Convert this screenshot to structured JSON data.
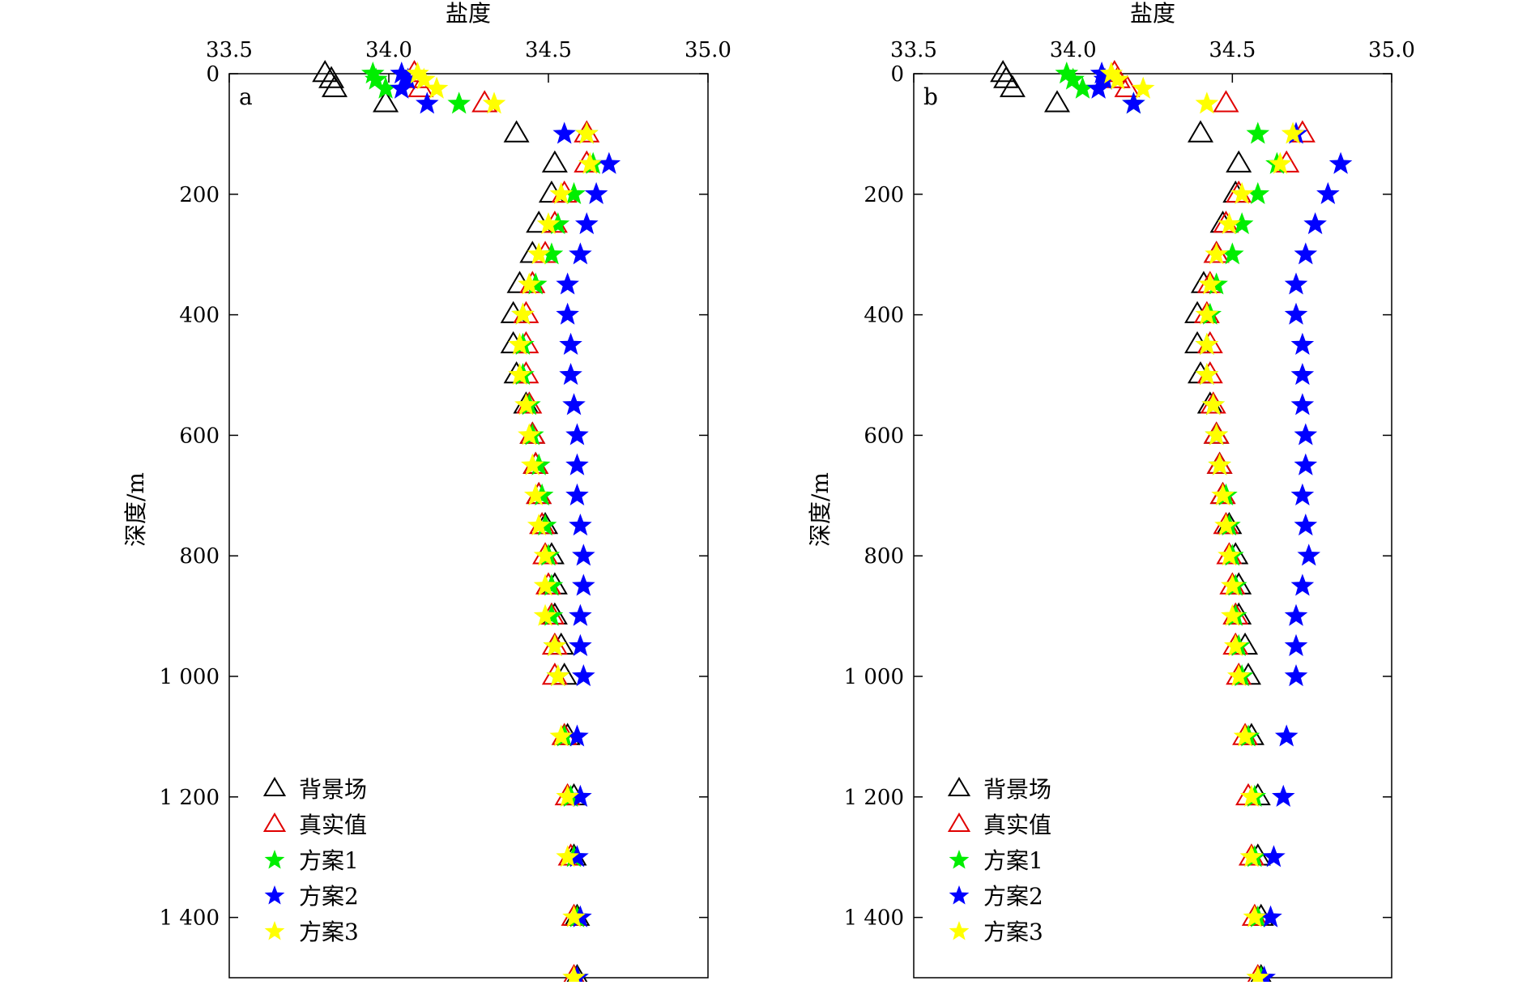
{
  "chart_data": [
    {
      "type": "scatter",
      "panel_label": "a",
      "xlabel": "盐度",
      "ylabel": "深度/m",
      "xlim": [
        33.5,
        35.0
      ],
      "ylim": [
        0,
        1500
      ],
      "y_inverted": true,
      "x_axis_position": "top",
      "xticks": [
        33.5,
        34.0,
        34.5,
        35.0
      ],
      "xtick_labels": [
        "33.5",
        "34.0",
        "34.5",
        "35.0"
      ],
      "yticks": [
        0,
        200,
        400,
        600,
        800,
        1000,
        1200,
        1400
      ],
      "ytick_labels": [
        "0",
        "200",
        "400",
        "600",
        "800",
        "1 000",
        "1 200",
        "1 400"
      ],
      "legend_position": "bottom-left",
      "series": [
        {
          "name": "背景场",
          "marker": "triangle",
          "color": "#000000",
          "y": [
            0,
            10,
            25,
            50,
            100,
            150,
            200,
            250,
            300,
            350,
            400,
            450,
            500,
            550,
            600,
            650,
            700,
            750,
            800,
            850,
            900,
            950,
            1000,
            1100,
            1200,
            1300,
            1400,
            1500
          ],
          "x": [
            33.8,
            33.82,
            33.83,
            33.99,
            34.4,
            34.52,
            34.51,
            34.47,
            34.45,
            34.41,
            34.39,
            34.39,
            34.4,
            34.43,
            34.45,
            34.46,
            34.47,
            34.49,
            34.51,
            34.52,
            34.52,
            34.54,
            34.55,
            34.56,
            34.58,
            34.58,
            34.59,
            34.59
          ]
        },
        {
          "name": "真实值",
          "marker": "triangle",
          "color": "#e00000",
          "y": [
            0,
            10,
            25,
            50,
            100,
            150,
            200,
            250,
            300,
            350,
            400,
            450,
            500,
            550,
            600,
            650,
            700,
            750,
            800,
            850,
            900,
            950,
            1000,
            1100,
            1200,
            1300,
            1400,
            1500
          ],
          "x": [
            34.08,
            34.09,
            34.1,
            34.3,
            34.62,
            34.62,
            34.55,
            34.52,
            34.49,
            34.45,
            34.43,
            34.43,
            34.43,
            34.44,
            34.45,
            34.46,
            34.47,
            34.48,
            34.49,
            34.5,
            34.51,
            34.52,
            34.52,
            34.55,
            34.56,
            34.57,
            34.58,
            34.58
          ]
        },
        {
          "name": "方案1",
          "marker": "star",
          "color": "#00ee00",
          "y": [
            0,
            10,
            25,
            50,
            100,
            150,
            200,
            250,
            300,
            350,
            400,
            450,
            500,
            550,
            600,
            650,
            700,
            750,
            800,
            850,
            900,
            950,
            1000,
            1100,
            1200,
            1300,
            1400,
            1500
          ],
          "x": [
            33.95,
            33.96,
            33.99,
            34.22,
            34.62,
            34.64,
            34.58,
            34.53,
            34.51,
            34.46,
            34.42,
            34.42,
            34.42,
            34.44,
            34.45,
            34.47,
            34.48,
            34.49,
            34.5,
            34.51,
            34.51,
            34.52,
            34.53,
            34.55,
            34.57,
            34.58,
            34.59,
            34.59
          ]
        },
        {
          "name": "方案2",
          "marker": "star",
          "color": "#0000ff",
          "y": [
            0,
            10,
            25,
            50,
            100,
            150,
            200,
            250,
            300,
            350,
            400,
            450,
            500,
            550,
            600,
            650,
            700,
            750,
            800,
            850,
            900,
            950,
            1000,
            1100,
            1200,
            1300,
            1400,
            1500
          ],
          "x": [
            34.04,
            34.06,
            34.04,
            34.12,
            34.55,
            34.69,
            34.65,
            34.62,
            34.6,
            34.56,
            34.56,
            34.57,
            34.57,
            34.58,
            34.59,
            34.59,
            34.59,
            34.6,
            34.61,
            34.61,
            34.6,
            34.6,
            34.61,
            34.59,
            34.6,
            34.59,
            34.6,
            34.59
          ]
        },
        {
          "name": "方案3",
          "marker": "star",
          "color": "#ffff00",
          "y": [
            0,
            10,
            25,
            50,
            100,
            150,
            200,
            250,
            300,
            350,
            400,
            450,
            500,
            550,
            600,
            650,
            700,
            750,
            800,
            850,
            900,
            950,
            1000,
            1100,
            1200,
            1300,
            1400,
            1500
          ],
          "x": [
            34.09,
            34.11,
            34.15,
            34.33,
            34.62,
            34.63,
            34.54,
            34.5,
            34.47,
            34.44,
            34.42,
            34.41,
            34.41,
            34.43,
            34.44,
            34.45,
            34.46,
            34.47,
            34.49,
            34.49,
            34.49,
            34.52,
            34.53,
            34.54,
            34.56,
            34.56,
            34.58,
            34.58
          ]
        }
      ]
    },
    {
      "type": "scatter",
      "panel_label": "b",
      "xlabel": "盐度",
      "ylabel": "深度/m",
      "xlim": [
        33.5,
        35.0
      ],
      "ylim": [
        0,
        1500
      ],
      "y_inverted": true,
      "x_axis_position": "top",
      "xticks": [
        33.5,
        34.0,
        34.5,
        35.0
      ],
      "xtick_labels": [
        "33.5",
        "34.0",
        "34.5",
        "35.0"
      ],
      "yticks": [
        0,
        200,
        400,
        600,
        800,
        1000,
        1200,
        1400
      ],
      "ytick_labels": [
        "0",
        "200",
        "400",
        "600",
        "800",
        "1 000",
        "1 200",
        "1 400"
      ],
      "legend_position": "bottom-left",
      "series": [
        {
          "name": "背景场",
          "marker": "triangle",
          "color": "#000000",
          "y": [
            0,
            10,
            25,
            50,
            100,
            150,
            200,
            250,
            300,
            350,
            400,
            450,
            500,
            550,
            600,
            650,
            700,
            750,
            800,
            850,
            900,
            950,
            1000,
            1100,
            1200,
            1300,
            1400,
            1500
          ],
          "x": [
            33.78,
            33.79,
            33.81,
            33.95,
            34.4,
            34.52,
            34.51,
            34.47,
            34.45,
            34.41,
            34.39,
            34.39,
            34.4,
            34.43,
            34.45,
            34.46,
            34.47,
            34.49,
            34.51,
            34.52,
            34.52,
            34.54,
            34.55,
            34.56,
            34.58,
            34.58,
            34.59,
            34.59
          ]
        },
        {
          "name": "真实值",
          "marker": "triangle",
          "color": "#e00000",
          "y": [
            0,
            10,
            25,
            50,
            100,
            150,
            200,
            250,
            300,
            350,
            400,
            450,
            500,
            550,
            600,
            650,
            700,
            750,
            800,
            850,
            900,
            950,
            1000,
            1100,
            1200,
            1300,
            1400,
            1500
          ],
          "x": [
            34.13,
            34.14,
            34.17,
            34.48,
            34.72,
            34.67,
            34.52,
            34.48,
            34.45,
            34.43,
            34.42,
            34.43,
            34.43,
            34.44,
            34.45,
            34.46,
            34.47,
            34.48,
            34.49,
            34.5,
            34.51,
            34.51,
            34.52,
            34.54,
            34.55,
            34.56,
            34.57,
            34.58
          ]
        },
        {
          "name": "方案1",
          "marker": "star",
          "color": "#00ee00",
          "y": [
            0,
            10,
            25,
            50,
            100,
            150,
            200,
            250,
            300,
            350,
            400,
            450,
            500,
            550,
            600,
            650,
            700,
            750,
            800,
            850,
            900,
            950,
            1000,
            1100,
            1200,
            1300,
            1400,
            1500
          ],
          "x": [
            33.98,
            34.0,
            34.03,
            34.19,
            34.58,
            34.64,
            34.58,
            34.53,
            34.5,
            34.45,
            34.43,
            34.42,
            34.42,
            34.44,
            34.45,
            34.46,
            34.48,
            34.49,
            34.5,
            34.51,
            34.51,
            34.52,
            34.53,
            34.55,
            34.57,
            34.57,
            34.58,
            34.59
          ]
        },
        {
          "name": "方案2",
          "marker": "star",
          "color": "#0000ff",
          "y": [
            0,
            10,
            25,
            50,
            100,
            150,
            200,
            250,
            300,
            350,
            400,
            450,
            500,
            550,
            600,
            650,
            700,
            750,
            800,
            850,
            900,
            950,
            1000,
            1100,
            1200,
            1300,
            1400,
            1500
          ],
          "x": [
            34.09,
            34.1,
            34.08,
            34.19,
            34.7,
            34.84,
            34.8,
            34.76,
            34.73,
            34.7,
            34.7,
            34.72,
            34.72,
            34.72,
            34.73,
            34.73,
            34.72,
            34.73,
            34.74,
            34.72,
            34.7,
            34.7,
            34.7,
            34.67,
            34.66,
            34.63,
            34.62,
            34.6
          ]
        },
        {
          "name": "方案3",
          "marker": "star",
          "color": "#ffff00",
          "y": [
            0,
            10,
            25,
            50,
            100,
            150,
            200,
            250,
            300,
            350,
            400,
            450,
            500,
            550,
            600,
            650,
            700,
            750,
            800,
            850,
            900,
            950,
            1000,
            1100,
            1200,
            1300,
            1400,
            1500
          ],
          "x": [
            34.12,
            34.14,
            34.22,
            34.42,
            34.69,
            34.65,
            34.53,
            34.49,
            34.45,
            34.43,
            34.42,
            34.42,
            34.42,
            34.44,
            34.45,
            34.46,
            34.47,
            34.48,
            34.49,
            34.5,
            34.5,
            34.51,
            34.52,
            34.54,
            34.56,
            34.56,
            34.57,
            34.58
          ]
        }
      ]
    }
  ]
}
